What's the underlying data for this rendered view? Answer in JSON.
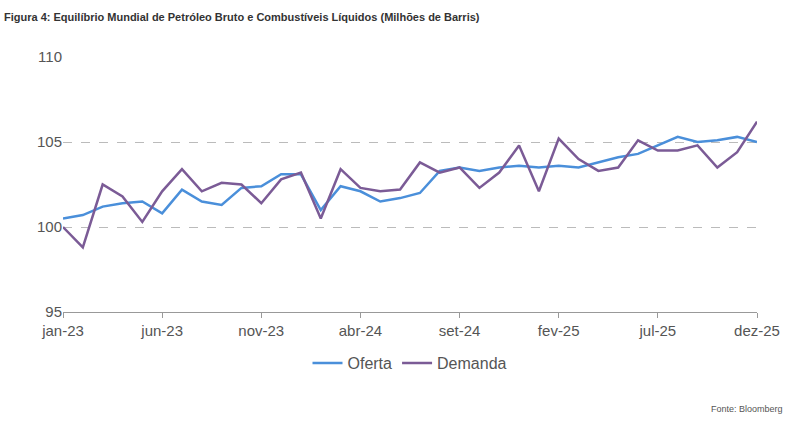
{
  "chart_data": {
    "type": "line",
    "title": "Figura 4: Equilíbrio Mundial de Petróleo Bruto e Combustíveis Líquidos (Milhões de Barris)",
    "source": "Fonte: Bloomberg",
    "categories": [
      "jan-23",
      null,
      null,
      null,
      null,
      "jun-23",
      null,
      null,
      null,
      null,
      "nov-23",
      null,
      null,
      null,
      null,
      "abr-24",
      null,
      null,
      null,
      null,
      "set-24",
      null,
      null,
      null,
      null,
      "fev-25",
      null,
      null,
      null,
      null,
      "jul-25",
      null,
      null,
      null,
      null,
      "dez-25"
    ],
    "series": [
      {
        "name": "Oferta",
        "color": "#4a8fda",
        "values": [
          100.5,
          100.7,
          101.2,
          101.4,
          101.5,
          100.8,
          102.2,
          101.5,
          101.3,
          102.3,
          102.4,
          103.1,
          103.1,
          101.0,
          102.4,
          102.1,
          101.5,
          101.7,
          102.0,
          103.3,
          103.5,
          103.3,
          103.5,
          103.6,
          103.5,
          103.6,
          103.5,
          103.8,
          104.1,
          104.3,
          104.8,
          105.3,
          105.0,
          105.1,
          105.3,
          105.0
        ]
      },
      {
        "name": "Demanda",
        "color": "#7b5b96",
        "values": [
          100.0,
          98.8,
          102.5,
          101.8,
          100.3,
          102.1,
          103.4,
          102.1,
          102.6,
          102.5,
          101.4,
          102.8,
          103.2,
          100.5,
          103.4,
          102.3,
          102.1,
          102.2,
          103.8,
          103.2,
          103.5,
          102.3,
          103.2,
          104.8,
          102.1,
          105.2,
          104.0,
          103.3,
          103.5,
          105.1,
          104.5,
          104.5,
          104.8,
          103.5,
          104.4,
          106.2
        ]
      }
    ],
    "ylim": [
      95,
      110
    ],
    "yticks": [
      95,
      100,
      105,
      110
    ],
    "grid": true,
    "legend": "bottom"
  }
}
